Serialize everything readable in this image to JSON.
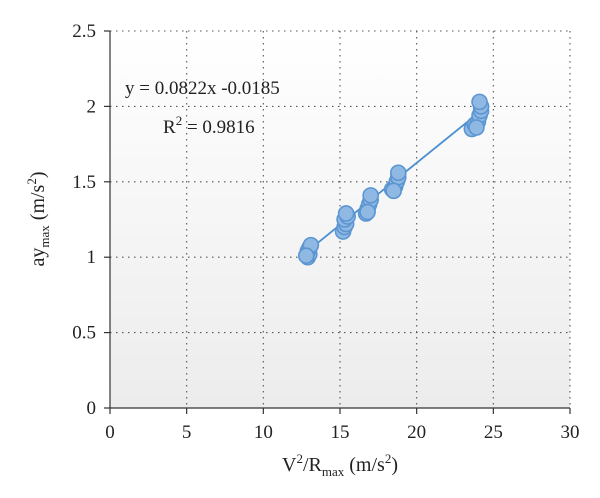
{
  "chart_data": {
    "type": "scatter",
    "xlabel": {
      "base": "V",
      "sup": "2",
      "mid": "/R",
      "sub": "max",
      "unit": " (m/s",
      "unit_sup": "2",
      "unit_end": ")"
    },
    "ylabel": {
      "base": "ay",
      "sub": "max",
      "unit": " (m/s",
      "unit_sup": "2",
      "unit_end": ")"
    },
    "xlim": [
      0,
      30
    ],
    "ylim": [
      0,
      2.5
    ],
    "xticks": [
      0,
      5,
      10,
      15,
      20,
      25,
      30
    ],
    "yticks": [
      0,
      0.5,
      1,
      1.5,
      2,
      2.5
    ],
    "ytick_labels": [
      "0",
      "0.5",
      "1",
      "1.5",
      "2",
      "2.5"
    ],
    "grid": true,
    "marker_color": "#8fb8e2",
    "marker_edge": "#5b95d2",
    "trendline_color": "#4a8fd0",
    "trendline": {
      "slope": 0.0822,
      "intercept": -0.0185,
      "x_range": [
        13,
        24.3
      ]
    },
    "equation_text": "y = 0.0822x -0.0185",
    "r2": {
      "base": "R",
      "sup": "2",
      "value": " = 0.9816"
    },
    "points": [
      {
        "x": 12.9,
        "y": 1.0
      },
      {
        "x": 13.0,
        "y": 1.02
      },
      {
        "x": 12.9,
        "y": 1.04
      },
      {
        "x": 13.0,
        "y": 1.06
      },
      {
        "x": 13.1,
        "y": 1.08
      },
      {
        "x": 12.8,
        "y": 1.01
      },
      {
        "x": 15.2,
        "y": 1.17
      },
      {
        "x": 15.3,
        "y": 1.2
      },
      {
        "x": 15.4,
        "y": 1.22
      },
      {
        "x": 15.3,
        "y": 1.25
      },
      {
        "x": 15.5,
        "y": 1.27
      },
      {
        "x": 15.4,
        "y": 1.29
      },
      {
        "x": 16.7,
        "y": 1.29
      },
      {
        "x": 16.8,
        "y": 1.32
      },
      {
        "x": 16.9,
        "y": 1.35
      },
      {
        "x": 17.0,
        "y": 1.38
      },
      {
        "x": 17.0,
        "y": 1.41
      },
      {
        "x": 16.8,
        "y": 1.3
      },
      {
        "x": 18.4,
        "y": 1.45
      },
      {
        "x": 18.6,
        "y": 1.47
      },
      {
        "x": 18.7,
        "y": 1.5
      },
      {
        "x": 18.8,
        "y": 1.53
      },
      {
        "x": 18.8,
        "y": 1.56
      },
      {
        "x": 18.5,
        "y": 1.44
      },
      {
        "x": 23.6,
        "y": 1.85
      },
      {
        "x": 23.8,
        "y": 1.88
      },
      {
        "x": 24.0,
        "y": 1.9
      },
      {
        "x": 24.1,
        "y": 1.94
      },
      {
        "x": 24.2,
        "y": 1.97
      },
      {
        "x": 24.2,
        "y": 2.0
      },
      {
        "x": 24.1,
        "y": 2.03
      },
      {
        "x": 23.9,
        "y": 1.86
      }
    ]
  }
}
